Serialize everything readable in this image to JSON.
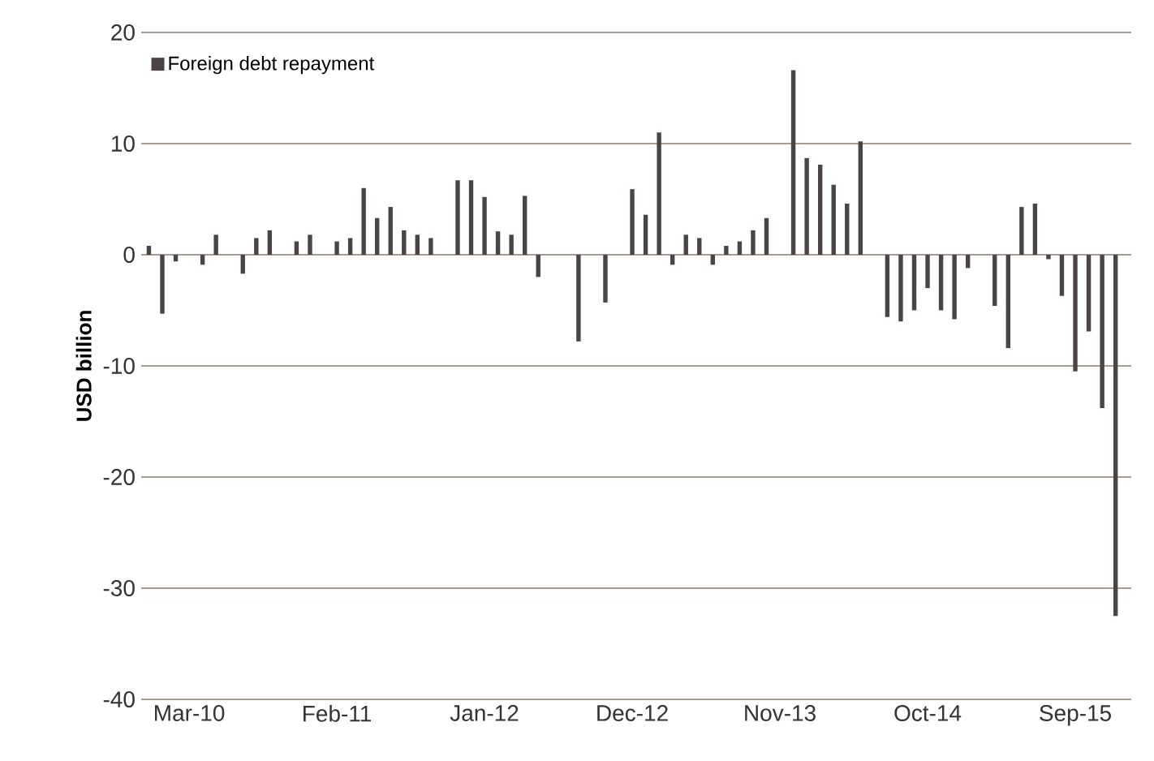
{
  "chart_data": {
    "type": "bar",
    "ylabel": "USD billion",
    "categories": [
      null,
      null,
      null,
      "Mar-10",
      null,
      null,
      null,
      null,
      null,
      null,
      null,
      null,
      null,
      null,
      "Feb-11",
      null,
      null,
      null,
      null,
      null,
      null,
      null,
      null,
      null,
      null,
      "Jan-12",
      null,
      null,
      null,
      null,
      null,
      null,
      null,
      null,
      null,
      null,
      "Dec-12",
      null,
      null,
      null,
      null,
      null,
      null,
      null,
      null,
      null,
      null,
      "Nov-13",
      null,
      null,
      null,
      null,
      null,
      null,
      null,
      null,
      null,
      null,
      "Oct-14",
      null,
      null,
      null,
      null,
      null,
      null,
      null,
      null,
      null,
      null,
      "Sep-15",
      null,
      null,
      null
    ],
    "series": [
      {
        "name": "Foreign debt repayment",
        "color": "#4a4446",
        "values": [
          0.8,
          -5.3,
          -0.6,
          null,
          -0.9,
          1.8,
          null,
          -1.7,
          1.5,
          2.2,
          null,
          1.2,
          1.8,
          null,
          1.2,
          1.5,
          6.0,
          3.3,
          4.3,
          2.2,
          1.8,
          1.5,
          null,
          6.7,
          6.7,
          5.2,
          2.1,
          1.8,
          5.3,
          -2.0,
          null,
          null,
          -7.8,
          null,
          -4.3,
          null,
          5.9,
          3.6,
          11.0,
          -0.9,
          1.8,
          1.5,
          -0.9,
          0.8,
          1.2,
          2.2,
          3.3,
          null,
          16.6,
          8.7,
          8.1,
          6.3,
          4.6,
          10.2,
          null,
          -5.6,
          -6.0,
          -5.0,
          -3.0,
          -5.0,
          -5.8,
          -1.2,
          null,
          -4.6,
          -8.4,
          4.3,
          4.6,
          -0.4,
          -3.7,
          -10.5,
          -6.9,
          -13.8,
          -32.5
        ]
      }
    ],
    "ylim": [
      -40,
      20
    ],
    "yticks": [
      -40,
      -30,
      -20,
      -10,
      0,
      10,
      20
    ],
    "grid": "y",
    "legend": "top left"
  }
}
